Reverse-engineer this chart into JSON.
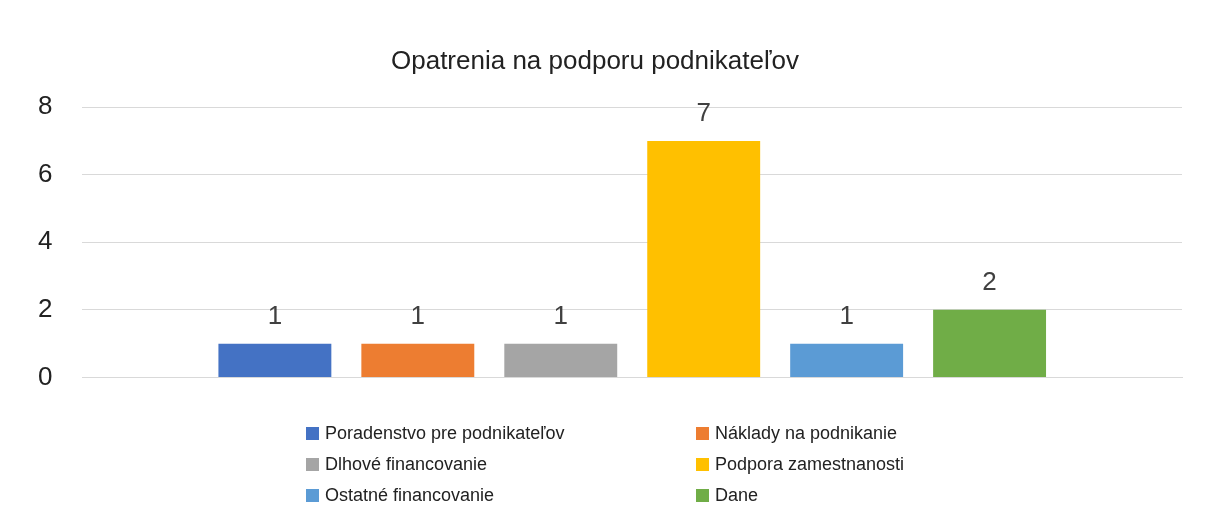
{
  "chart_data": {
    "type": "bar",
    "title": "Opatrenia na podporu podnikateľov",
    "categories": [
      null
    ],
    "series": [
      {
        "name": "Poradenstvo pre podnikateľov",
        "color": "#4472c4",
        "values": [
          1
        ]
      },
      {
        "name": "Náklady na podnikanie",
        "color": "#ed7d31",
        "values": [
          1
        ]
      },
      {
        "name": "Dlhové financovanie",
        "color": "#a5a5a5",
        "values": [
          1
        ]
      },
      {
        "name": "Podpora zamestnanosti",
        "color": "#ffc000",
        "values": [
          7
        ]
      },
      {
        "name": "Ostatné financovanie",
        "color": "#5b9bd5",
        "values": [
          1
        ]
      },
      {
        "name": "Dane",
        "color": "#70ad47",
        "values": [
          2
        ]
      }
    ],
    "ylim": [
      0,
      8
    ],
    "yticks": [
      0,
      2,
      4,
      6,
      8
    ],
    "grid": "y",
    "legend": "bottom",
    "data_labels": true
  }
}
